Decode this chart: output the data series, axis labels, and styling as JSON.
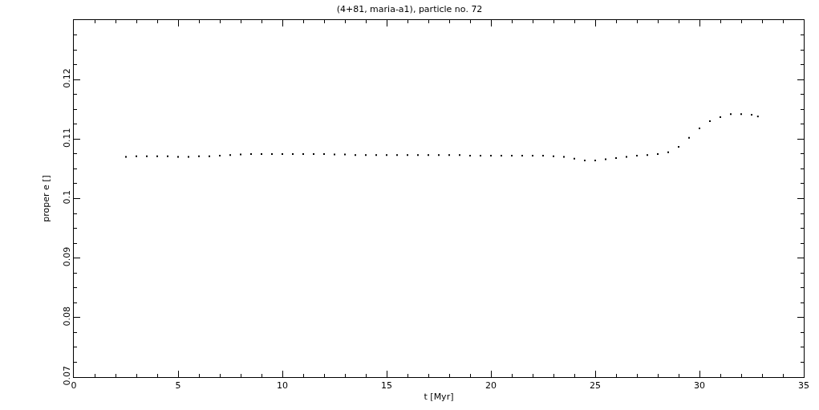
{
  "chart_data": {
    "type": "scatter",
    "title": "(4+81, maria-a1), particle no. 72",
    "xlabel": "t [Myr]",
    "ylabel": "proper e []",
    "x": [
      2.5,
      3,
      3.5,
      4,
      4.5,
      5,
      5.5,
      6,
      6.5,
      7,
      7.5,
      8,
      8.5,
      9,
      9.5,
      10,
      10.5,
      11,
      11.5,
      12,
      12.5,
      13,
      13.5,
      14,
      14.5,
      15,
      15.5,
      16,
      16.5,
      17,
      17.5,
      18,
      18.5,
      19,
      19.5,
      20,
      20.5,
      21,
      21.5,
      22,
      22.5,
      23,
      23.5,
      24,
      24.5,
      25,
      25.5,
      26,
      26.5,
      27,
      27.5,
      28,
      28.5,
      29,
      29.5,
      30,
      30.5,
      31,
      31.5,
      32,
      32.5,
      32.8
    ],
    "series": [
      {
        "color": "#000000",
        "values": [
          0.107,
          0.1071,
          0.1071,
          0.1071,
          0.1071,
          0.107,
          0.107,
          0.1071,
          0.1071,
          0.1072,
          0.1073,
          0.1074,
          0.1075,
          0.1075,
          0.1075,
          0.1075,
          0.1075,
          0.1075,
          0.1075,
          0.1075,
          0.1074,
          0.1074,
          0.1073,
          0.1073,
          0.1073,
          0.1073,
          0.1073,
          0.1073,
          0.1073,
          0.1073,
          0.1073,
          0.1073,
          0.1073,
          0.1072,
          0.1072,
          0.1072,
          0.1072,
          0.1072,
          0.1072,
          0.1072,
          0.1072,
          0.1071,
          0.107,
          0.1067,
          0.1064,
          0.1064,
          0.1066,
          0.1068,
          0.107,
          0.1072,
          0.1073,
          0.1075,
          0.1078,
          0.1087,
          0.1102,
          0.1118,
          0.113,
          0.1137,
          0.1142,
          0.1142,
          0.1141,
          0.1138
        ]
      }
    ],
    "xlim": [
      0,
      35
    ],
    "xticks": [
      0,
      5,
      10,
      15,
      20,
      25,
      30,
      35
    ],
    "ylim": [
      0.07,
      0.13
    ],
    "yticks": [
      0.07,
      0.08,
      0.09,
      0.1,
      0.11,
      0.12,
      {
        "value": 0.13,
        "label": null
      }
    ],
    "marker": "square",
    "grid": false
  }
}
